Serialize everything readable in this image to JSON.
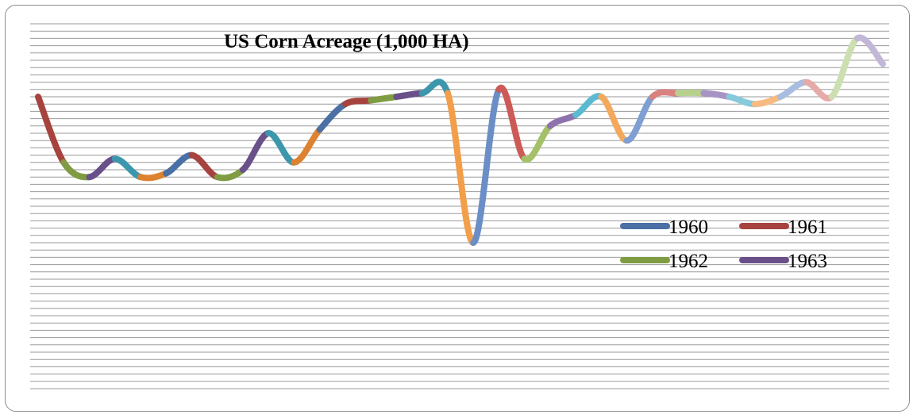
{
  "chart_data": {
    "type": "line",
    "title": "US Corn Acreage (1,000 HA)",
    "xlabel": "",
    "ylabel": "",
    "grid": true,
    "legend_placement": "right",
    "ylim": [
      0,
      100
    ],
    "legend": [
      {
        "name": "1960",
        "color": "#4a70a5"
      },
      {
        "name": "1961",
        "color": "#a7433f"
      },
      {
        "name": "1962",
        "color": "#7f9c43"
      },
      {
        "name": "1963",
        "color": "#695089"
      }
    ],
    "values": [
      80,
      62,
      58,
      63,
      58,
      59,
      64,
      58,
      60,
      70,
      62,
      71,
      78,
      79,
      80,
      81,
      81,
      40,
      82,
      63,
      72,
      75,
      80,
      68,
      80,
      81,
      81,
      80,
      78,
      80,
      84,
      80,
      96,
      89
    ],
    "segment_colors": [
      "#a7433f",
      "#7f9c43",
      "#695089",
      "#3d97ac",
      "#dd8230",
      "#4a70a5",
      "#a7433f",
      "#7f9c43",
      "#695089",
      "#3d97ac",
      "#dd8230",
      "#4a70a5",
      "#a7433f",
      "#7f9c43",
      "#695089",
      "#3d97ac",
      "#f29e4a",
      "#6a8ec6",
      "#cc5a56",
      "#a4c167",
      "#8e72ad",
      "#5abad1",
      "#f4a85c",
      "#7f9fd2",
      "#d98280",
      "#b7d08e",
      "#a894c4",
      "#86cadb",
      "#f7ba82",
      "#a8bde0",
      "#e6aaa9",
      "#ccdfb0",
      "#c3b7d7",
      "#aedce8"
    ]
  }
}
